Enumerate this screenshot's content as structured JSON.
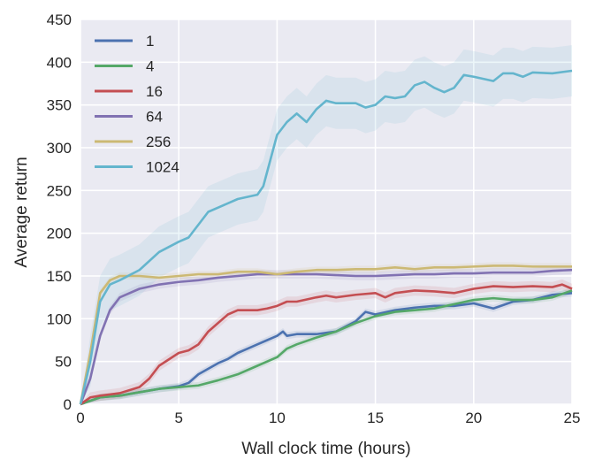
{
  "chart_data": {
    "type": "line",
    "title": "",
    "xlabel": "Wall clock time (hours)",
    "ylabel": "Average return",
    "xlim": [
      0,
      25
    ],
    "ylim": [
      0,
      450
    ],
    "xticks": [
      0,
      5,
      10,
      15,
      20,
      25
    ],
    "yticks": [
      0,
      50,
      100,
      150,
      200,
      250,
      300,
      350,
      400,
      450
    ],
    "grid": true,
    "background": "#EAEAF2",
    "legend_position": "top-left",
    "series": [
      {
        "name": "1",
        "color": "#4C72B0",
        "band": 4,
        "x": [
          0,
          1,
          2,
          3,
          4,
          5,
          5.5,
          6,
          7,
          7.5,
          8,
          8.5,
          9,
          9.5,
          10,
          10.3,
          10.5,
          11,
          12,
          13,
          14,
          14.5,
          15,
          16,
          17,
          18,
          19,
          20,
          21,
          22,
          23,
          24,
          25
        ],
        "y": [
          0,
          8,
          10,
          14,
          18,
          21,
          25,
          35,
          48,
          53,
          60,
          65,
          70,
          75,
          80,
          85,
          80,
          82,
          82,
          85,
          97,
          108,
          105,
          110,
          113,
          115,
          115,
          118,
          112,
          120,
          122,
          128,
          130
        ]
      },
      {
        "name": "4",
        "color": "#55A868",
        "band": 4,
        "x": [
          0,
          1,
          2,
          3,
          4,
          5,
          6,
          7,
          8,
          9,
          10,
          10.5,
          11,
          12,
          13,
          14,
          15,
          16,
          17,
          18,
          19,
          20,
          21,
          22,
          23,
          24,
          25
        ],
        "y": [
          0,
          8,
          10,
          14,
          18,
          20,
          22,
          28,
          35,
          45,
          55,
          65,
          70,
          78,
          85,
          95,
          103,
          108,
          110,
          112,
          117,
          122,
          124,
          122,
          122,
          125,
          133
        ]
      },
      {
        "name": "16",
        "color": "#C44E52",
        "band": 6,
        "x": [
          0,
          0.5,
          1,
          2,
          3,
          3.5,
          4,
          5,
          5.5,
          6,
          6.5,
          7,
          7.5,
          8,
          9,
          9.5,
          10,
          10.5,
          11,
          12,
          12.5,
          13,
          14,
          15,
          15.5,
          16,
          17,
          18,
          19,
          20,
          21,
          22,
          23,
          24,
          24.5,
          25
        ],
        "y": [
          0,
          8,
          10,
          13,
          20,
          30,
          45,
          60,
          63,
          70,
          85,
          95,
          105,
          110,
          110,
          112,
          115,
          120,
          120,
          125,
          127,
          125,
          128,
          130,
          125,
          130,
          133,
          132,
          130,
          135,
          138,
          137,
          138,
          137,
          140,
          135
        ]
      },
      {
        "name": "64",
        "color": "#8172B2",
        "band": 5,
        "x": [
          0,
          0.5,
          1,
          1.5,
          2,
          3,
          4,
          5,
          6,
          7,
          8,
          9,
          10,
          11,
          12,
          13,
          14,
          15,
          16,
          17,
          18,
          19,
          20,
          21,
          22,
          23,
          24,
          25
        ],
        "y": [
          0,
          30,
          80,
          110,
          125,
          135,
          140,
          143,
          145,
          148,
          150,
          152,
          152,
          152,
          152,
          151,
          150,
          150,
          151,
          152,
          152,
          153,
          153,
          154,
          154,
          154,
          156,
          157
        ]
      },
      {
        "name": "256",
        "color": "#CCB974",
        "band": 4,
        "x": [
          0,
          0.5,
          1,
          1.5,
          2,
          3,
          4,
          5,
          6,
          7,
          8,
          9,
          10,
          11,
          12,
          13,
          14,
          15,
          16,
          17,
          18,
          19,
          20,
          21,
          22,
          23,
          24,
          25
        ],
        "y": [
          0,
          60,
          130,
          145,
          150,
          150,
          148,
          150,
          152,
          152,
          155,
          155,
          152,
          155,
          157,
          157,
          158,
          158,
          160,
          158,
          160,
          160,
          161,
          162,
          162,
          161,
          161,
          161
        ]
      },
      {
        "name": "1024",
        "color": "#64B5CD",
        "band": 30,
        "x": [
          0,
          0.5,
          1,
          1.5,
          2,
          3,
          4,
          5,
          5.5,
          6,
          6.5,
          7,
          8,
          9,
          9.3,
          10,
          10.5,
          11,
          11.5,
          12,
          12.5,
          13,
          14,
          14.5,
          15,
          15.5,
          16,
          16.5,
          17,
          17.5,
          18,
          18.5,
          19,
          19.5,
          20,
          21,
          21.5,
          22,
          22.5,
          23,
          24,
          25
        ],
        "y": [
          0,
          50,
          120,
          140,
          145,
          157,
          178,
          190,
          195,
          210,
          225,
          230,
          240,
          245,
          255,
          315,
          330,
          340,
          330,
          345,
          355,
          352,
          352,
          347,
          350,
          360,
          358,
          360,
          373,
          377,
          370,
          365,
          370,
          385,
          383,
          378,
          387,
          387,
          383,
          388,
          387,
          390
        ]
      }
    ]
  }
}
